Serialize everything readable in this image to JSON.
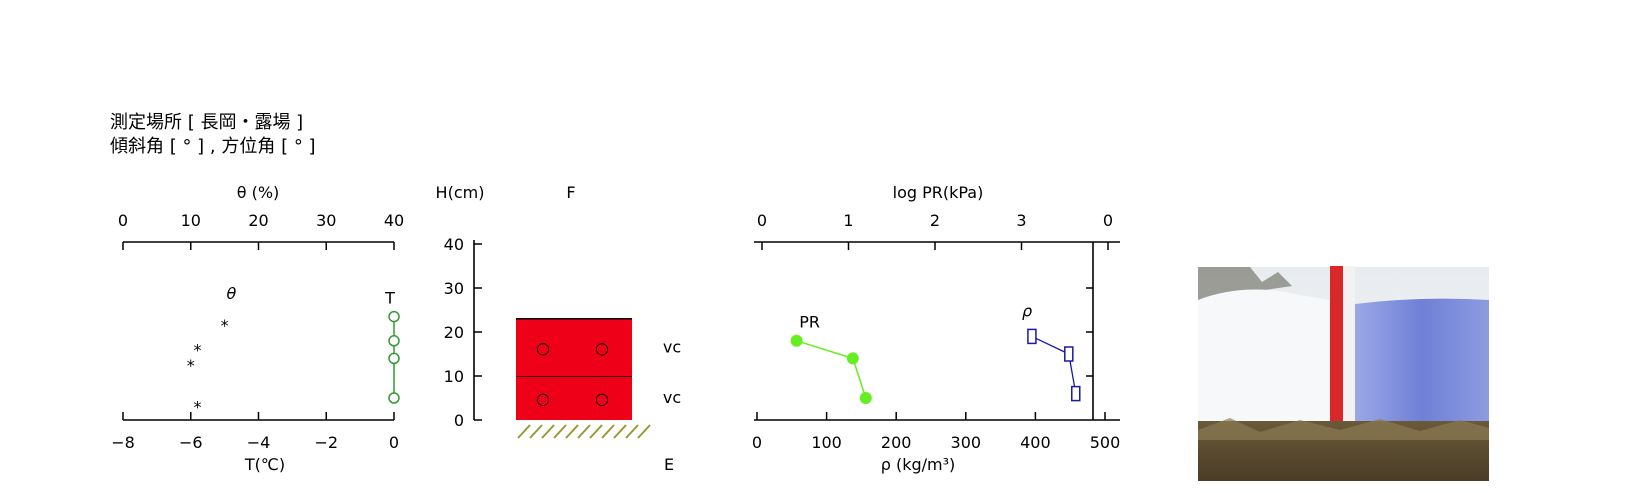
{
  "header": {
    "site_line": "測定場所 [ 長岡・露場 ]",
    "angle_line": "傾斜角 [ ° ] , 方位角 [ ° ]"
  },
  "chart_data": [
    {
      "type": "scatter",
      "name": "temperature-moisture-profile",
      "top_axis": {
        "label": "θ (%)",
        "range": [
          0,
          40
        ],
        "ticks": [
          0,
          10,
          20,
          30,
          40
        ]
      },
      "bottom_axis": {
        "label": "T(℃)",
        "range": [
          -8,
          0
        ],
        "ticks": [
          "−8",
          "−6",
          "−4",
          "−2",
          "0"
        ]
      },
      "y_range_cm": [
        0,
        40
      ],
      "series": [
        {
          "name": "θ",
          "marker": "asterisk",
          "color": "#000000",
          "points": [
            {
              "value": 11,
              "h": 3.5
            },
            {
              "value": 10,
              "h": 13
            },
            {
              "value": 11,
              "h": 16.5
            },
            {
              "value": 15,
              "h": 22
            }
          ]
        },
        {
          "name": "T",
          "marker": "open-circle",
          "color": "#339933",
          "points": [
            {
              "value": 0,
              "h": 5
            },
            {
              "value": 0,
              "h": 14
            },
            {
              "value": 0,
              "h": 18
            },
            {
              "value": 0,
              "h": 23.5
            }
          ]
        }
      ]
    },
    {
      "type": "table",
      "name": "snow-layer-profile",
      "y_label": "H(cm)",
      "y_range": [
        0,
        40
      ],
      "y_ticks": [
        0,
        10,
        20,
        30,
        40
      ],
      "top_label": "F",
      "bottom_label": "E",
      "layer_color": "#ee0018",
      "ground_color": "#999933",
      "layers": [
        {
          "bottom": 0,
          "top": 10,
          "grain": "○",
          "type_label": "vc"
        },
        {
          "bottom": 10,
          "top": 23,
          "grain": "○",
          "type_label": "vc"
        }
      ]
    },
    {
      "type": "line",
      "name": "resistance-density-profile",
      "top_axis": {
        "label": "log PR(kPa)",
        "ticks": [
          "0",
          "1",
          "2",
          "3",
          "0"
        ]
      },
      "bottom_axis": {
        "label": "ρ (kg/m³)",
        "range": [
          0,
          500
        ],
        "ticks": [
          0,
          100,
          200,
          300,
          400,
          500
        ]
      },
      "y_range_cm": [
        0,
        40
      ],
      "series": [
        {
          "name": "PR",
          "color": "#66ee22",
          "marker": "filled-circle",
          "points": [
            {
              "log_pr": 0.4,
              "h": 18
            },
            {
              "log_pr": 1.05,
              "h": 14
            },
            {
              "log_pr": 1.2,
              "h": 5
            }
          ]
        },
        {
          "name": "ρ",
          "color": "#1a1aa0",
          "marker": "open-square",
          "points": [
            {
              "rho": 395,
              "h": 19
            },
            {
              "rho": 448,
              "h": 15
            },
            {
              "rho": 458,
              "h": 6
            }
          ]
        }
      ]
    }
  ]
}
